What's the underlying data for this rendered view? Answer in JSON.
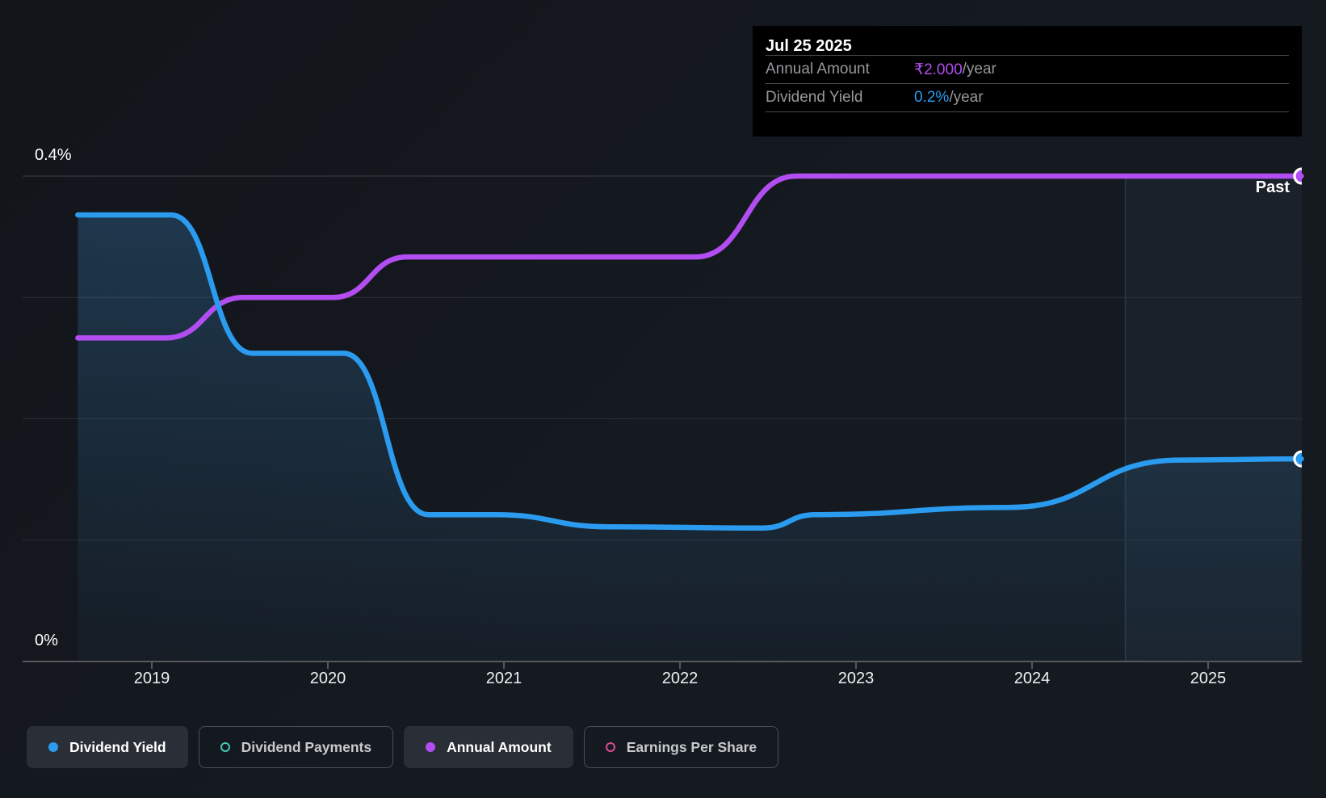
{
  "tooltip": {
    "date": "Jul 25 2025",
    "rows": [
      {
        "id": "annual-amount",
        "label": "Annual Amount",
        "value": "₹2.000",
        "suffix": "/year",
        "color": "#b24df2"
      },
      {
        "id": "dividend-yield",
        "label": "Dividend Yield",
        "value": "0.2%",
        "suffix": "/year",
        "color": "#2b9bf0"
      }
    ]
  },
  "y_axis": {
    "top_label": "0.4%",
    "bottom_label": "0%"
  },
  "x_axis": {
    "years": [
      "2019",
      "2020",
      "2021",
      "2022",
      "2023",
      "2024",
      "2025"
    ]
  },
  "past_label": "Past",
  "legend": [
    {
      "id": "dividend-yield",
      "label": "Dividend Yield",
      "color": "#2b9bf0",
      "style": "filled",
      "marker": "dot"
    },
    {
      "id": "dividend-payments",
      "label": "Dividend Payments",
      "color": "#44c8b4",
      "style": "outlined",
      "marker": "ring"
    },
    {
      "id": "annual-amount",
      "label": "Annual Amount",
      "color": "#b24df2",
      "style": "filled",
      "marker": "dot"
    },
    {
      "id": "earnings-per-share",
      "label": "Earnings Per Share",
      "color": "#da4c92",
      "style": "outlined",
      "marker": "ring"
    }
  ],
  "chart_data": {
    "type": "line",
    "title": "Dividend history",
    "x_unit": "year",
    "x_start": 2018.58,
    "x_end": 2025.53,
    "x_end_date_label": "Jul 25 2025",
    "grid": true,
    "y_axis_percent": {
      "min": 0,
      "max": 0.4,
      "gridline_step": 0.1,
      "top_tick_label": "0.4%",
      "bottom_tick_label": "0%"
    },
    "past_band_start": 2024.53,
    "series": [
      {
        "name": "Dividend Yield",
        "unit": "%",
        "color": "#2b9bf0",
        "area_fill": true,
        "end_marker": true,
        "points": [
          [
            2018.58,
            0.368
          ],
          [
            2019.11,
            0.368
          ],
          [
            2019.57,
            0.254
          ],
          [
            2020.09,
            0.254
          ],
          [
            2020.57,
            0.121
          ],
          [
            2020.95,
            0.121
          ],
          [
            2021.6,
            0.111
          ],
          [
            2022.47,
            0.11
          ],
          [
            2022.77,
            0.121
          ],
          [
            2023.87,
            0.127
          ],
          [
            2024.84,
            0.166
          ],
          [
            2025.53,
            0.167
          ]
        ]
      },
      {
        "name": "Annual Amount",
        "unit": "INR",
        "color": "#b24df2",
        "area_fill": false,
        "end_marker": true,
        "axis_max_inr": 2.0,
        "points": [
          [
            2018.58,
            1.333
          ],
          [
            2019.08,
            1.333
          ],
          [
            2019.52,
            1.5
          ],
          [
            2020.03,
            1.5
          ],
          [
            2020.45,
            1.667
          ],
          [
            2022.09,
            1.667
          ],
          [
            2022.66,
            2.0
          ],
          [
            2025.53,
            2.0
          ]
        ]
      }
    ]
  },
  "colors": {
    "page_bg": "#14181e",
    "tooltip_bg": "#000000",
    "grid_line": "#2c3036",
    "top_grid_line": "#3b3f45",
    "axis_line": "#55585d",
    "area_fill_rgb": "58,140,200",
    "past_band_fill": "rgba(120,170,225,0.055)",
    "past_band_edge": "rgba(148,184,222,0.16)"
  }
}
